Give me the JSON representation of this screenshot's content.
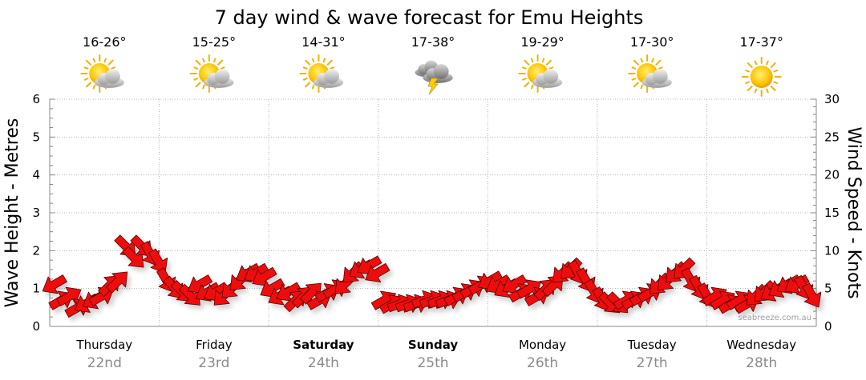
{
  "chart_data": {
    "type": "line",
    "title": "7 day wind & wave forecast for Emu Heights",
    "y_left_label": "Wave Height - Metres",
    "y_right_label": "Wind Speed - Knots",
    "y_left_range": [
      0,
      6
    ],
    "y_right_range": [
      0,
      30
    ],
    "y_left_ticks": [
      "0",
      "1",
      "2",
      "3",
      "4",
      "5",
      "6"
    ],
    "y_right_ticks": [
      "0",
      "5",
      "10",
      "15",
      "20",
      "25",
      "30"
    ],
    "grid": true,
    "days": [
      {
        "name": "Thursday",
        "date": "22nd",
        "bold": false,
        "temp": "16-26°",
        "icon": "partly-cloudy-icon"
      },
      {
        "name": "Friday",
        "date": "23rd",
        "bold": false,
        "temp": "15-25°",
        "icon": "partly-cloudy-icon"
      },
      {
        "name": "Saturday",
        "date": "24th",
        "bold": true,
        "temp": "14-31°",
        "icon": "partly-cloudy-icon"
      },
      {
        "name": "Sunday",
        "date": "25th",
        "bold": true,
        "temp": "17-38°",
        "icon": "storm-icon"
      },
      {
        "name": "Monday",
        "date": "26th",
        "bold": false,
        "temp": "19-29°",
        "icon": "partly-cloudy-icon"
      },
      {
        "name": "Tuesday",
        "date": "27th",
        "bold": false,
        "temp": "17-30°",
        "icon": "partly-cloudy-icon"
      },
      {
        "name": "Wednesday",
        "date": "28th",
        "bold": false,
        "temp": "17-37°",
        "icon": "sunny-icon"
      }
    ],
    "wind_series": {
      "name": "Wind",
      "unit": "knots",
      "values": [
        5.5,
        3.5,
        4.0,
        2.5,
        3.0,
        3.5,
        4.0,
        5.5,
        6.0,
        10.5,
        9.0,
        10.5,
        9.5,
        8.5,
        6.0,
        5.0,
        4.5,
        4.0,
        5.5,
        4.5,
        4.5,
        4.0,
        5.0,
        6.0,
        7.0,
        7.0,
        6.5,
        5.0,
        4.0,
        4.5,
        3.5,
        4.0,
        4.5,
        3.5,
        4.5,
        5.0,
        5.5,
        7.0,
        7.5,
        8.0,
        7.0,
        3.5,
        3.0,
        3.0,
        3.0,
        3.0,
        3.5,
        3.5,
        3.5,
        3.5,
        4.0,
        4.5,
        5.0,
        5.5,
        6.0,
        5.5,
        5.0,
        5.5,
        4.5,
        5.0,
        4.0,
        5.0,
        5.5,
        7.0,
        7.5,
        7.0,
        6.0,
        4.5,
        3.5,
        3.0,
        3.0,
        3.5,
        3.5,
        4.0,
        4.5,
        5.5,
        6.0,
        7.0,
        7.5,
        6.0,
        5.0,
        4.0,
        4.0,
        3.5,
        3.0,
        3.5,
        3.0,
        4.0,
        4.5,
        4.5,
        5.0,
        5.5,
        5.5,
        5.0,
        4.0
      ],
      "directions_deg": [
        240,
        60,
        60,
        60,
        240,
        240,
        60,
        45,
        45,
        135,
        135,
        135,
        150,
        150,
        150,
        140,
        135,
        135,
        240,
        240,
        240,
        225,
        225,
        225,
        240,
        240,
        240,
        240,
        240,
        240,
        45,
        45,
        45,
        60,
        60,
        60,
        225,
        225,
        240,
        240,
        240,
        60,
        60,
        70,
        70,
        70,
        70,
        70,
        70,
        70,
        60,
        60,
        60,
        60,
        240,
        240,
        240,
        240,
        60,
        60,
        60,
        45,
        45,
        225,
        225,
        150,
        150,
        150,
        150,
        135,
        135,
        60,
        60,
        60,
        60,
        225,
        225,
        225,
        225,
        150,
        150,
        150,
        60,
        60,
        60,
        60,
        60,
        225,
        225,
        240,
        240,
        240,
        240,
        150,
        150
      ]
    }
  },
  "watermark": "seabreeze.com.au"
}
